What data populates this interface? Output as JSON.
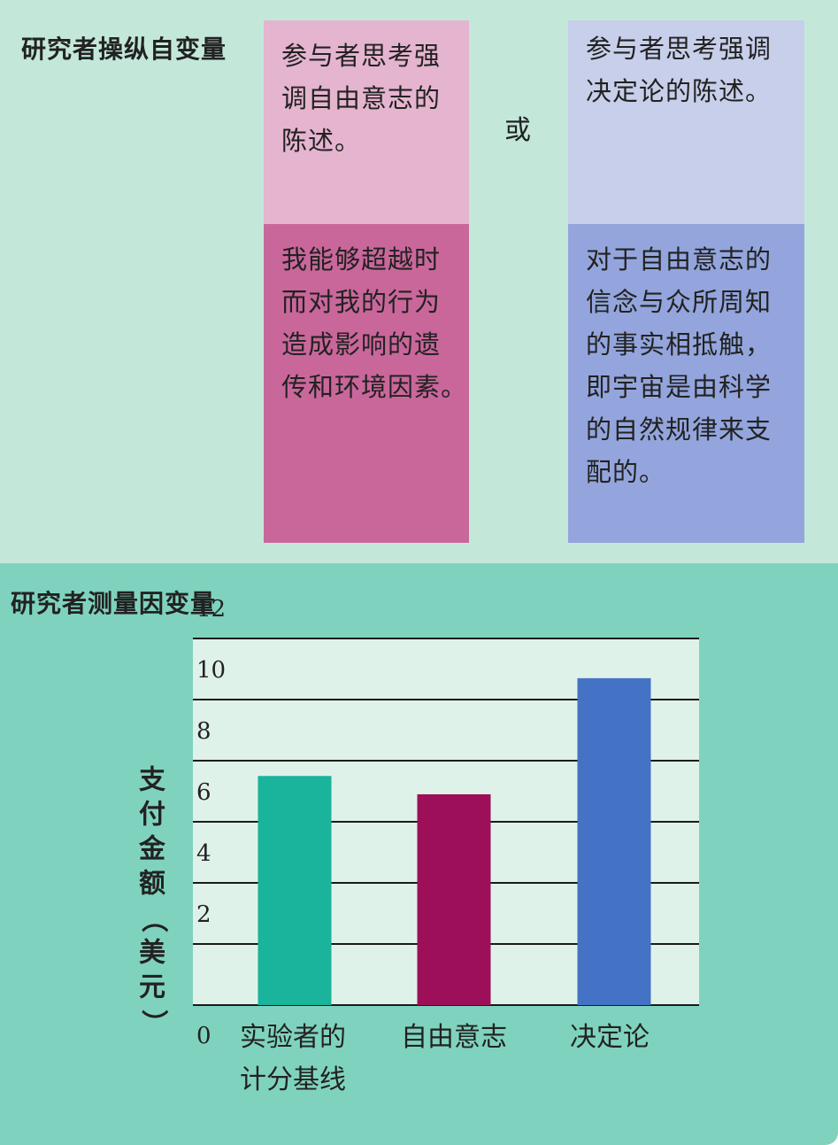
{
  "independent_variable": {
    "title": "研究者操纵自变量",
    "or_label": "或",
    "free_will": {
      "prompt_lines": [
        "参与者思考强",
        "调自由意志的",
        "陈述。"
      ],
      "example_lines": [
        "我能够超越时",
        "而对我的行为",
        "造成影响的遗",
        "传和环境因素。"
      ]
    },
    "determinism": {
      "prompt_lines": [
        "参与者思考强调",
        "决定论的陈述。"
      ],
      "example_lines": [
        "对于自由意志的",
        "信念与众所周知",
        "的事实相抵触，",
        "即宇宙是由科学",
        "的自然规律来支",
        "配的。"
      ]
    }
  },
  "dependent_variable": {
    "title": "研究者测量因变量"
  },
  "chart_data": {
    "type": "bar",
    "ylabel": "支付金额（美元）",
    "ylim": [
      0,
      12
    ],
    "yticks": [
      0,
      2,
      4,
      6,
      8,
      10,
      12
    ],
    "grid": true,
    "categories": [
      [
        "实验者的",
        "计分基线"
      ],
      [
        "自由意志"
      ],
      [
        "决定论"
      ]
    ],
    "values": [
      7.5,
      6.9,
      10.7
    ],
    "colors": [
      "#1ab39b",
      "#9e0f5a",
      "#4472c4"
    ],
    "plot_background": "#dff2ea"
  }
}
